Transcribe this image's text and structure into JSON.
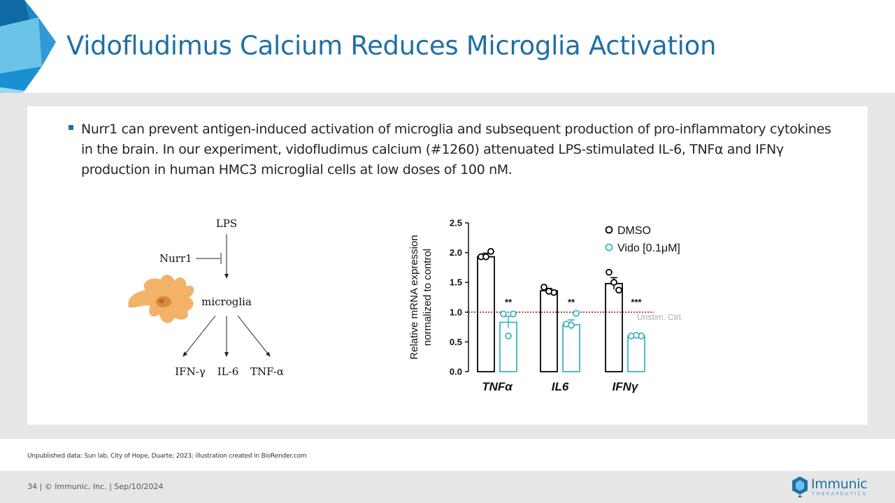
{
  "slide": {
    "title": "Vidofludimus Calcium Reduces Microglia Activation",
    "bullet": "Nurr1 can prevent antigen-induced activation of microglia and subsequent production of pro-inflammatory cytokines in the brain. In our experiment, vidofludimus calcium (#1260) attenuated LPS-stimulated IL-6, TNFα and IFNγ production in human HMC3 microglial cells at low doses of 100 nM.",
    "source": "Unpublished data: Sun lab, City of Hope, Duarte; 2023; illustration created in BioRender.com",
    "footer": "34   |  © Immunic, Inc.   | Sep/10/2024",
    "logo": "Immunic",
    "logo_sub": "THERAPEUTICS",
    "accent_color": "#1f6fa6"
  },
  "diagram": {
    "lps": "LPS",
    "nurr1": "Nurr1",
    "microglia": "microglia",
    "outputs": [
      "IFN-γ",
      "IL-6",
      "TNF-α"
    ]
  },
  "chart_data": {
    "type": "bar",
    "categories": [
      "TNFα",
      "IL6",
      "IFNγ"
    ],
    "ylabel": "Relative mRNA expression normalized to control",
    "ylabel_lines": [
      "Relative mRNA expression",
      "normalized to control"
    ],
    "ylim": [
      0,
      2.5
    ],
    "yticks": [
      "0.0",
      "0.5",
      "1.0",
      "1.5",
      "2.0",
      "2.5"
    ],
    "series": [
      {
        "name": "DMSO",
        "color": "#000000",
        "values": [
          1.93,
          1.36,
          1.48
        ],
        "errors": [
          0.06,
          0.04,
          0.1
        ],
        "points": [
          [
            1.93,
            2.02,
            1.93
          ],
          [
            1.42,
            1.33,
            1.35
          ],
          [
            1.67,
            1.37,
            1.5
          ]
        ]
      },
      {
        "name": "Vido [0.1μM]",
        "color": "#3bb5c6",
        "values": [
          0.83,
          0.79,
          0.6
        ],
        "errors": [
          0.1,
          0.08,
          0.02
        ],
        "points": [
          [
            0.97,
            0.97,
            0.6
          ],
          [
            0.8,
            0.98,
            0.78
          ],
          [
            0.6,
            0.6,
            0.61
          ]
        ]
      }
    ],
    "significance": [
      "**",
      "**",
      "***"
    ],
    "reference_line": {
      "value": 1.0,
      "label": "Unstim. Ctrl.",
      "color": "#9b1c1c"
    }
  }
}
